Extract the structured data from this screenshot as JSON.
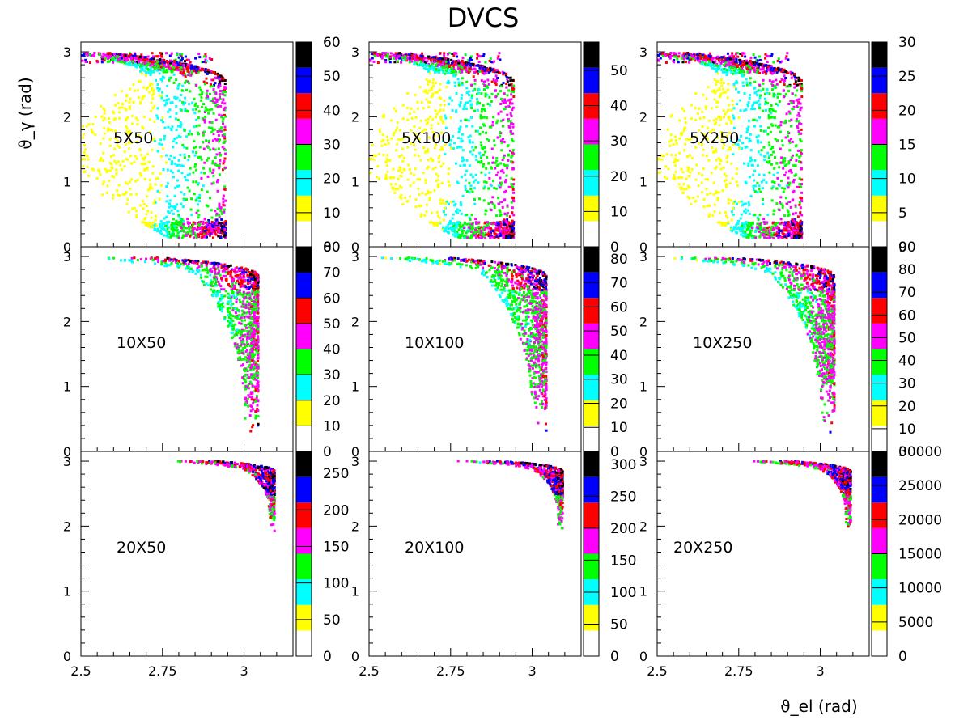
{
  "title": "DVCS",
  "xlabel": "ϑ_el (rad)",
  "ylabel": "ϑ_γ (rad)",
  "colors": {
    "palette": [
      "#ffffff",
      "#ffff00",
      "#00ffff",
      "#00ff00",
      "#ff00ff",
      "#ff0000",
      "#0000ff",
      "#000000"
    ]
  },
  "chart_data": [
    {
      "type": "heatmap",
      "label": "5X50",
      "xlim": [
        2.5,
        3.15
      ],
      "ylim": [
        0,
        3.15
      ],
      "x_ticks": [
        "2.5",
        "2.75",
        "3"
      ],
      "y_ticks": [
        "0",
        "1",
        "2",
        "3"
      ],
      "colorbar_ticks": [
        "0",
        "10",
        "20",
        "30",
        "40",
        "50",
        "60"
      ],
      "z_max": 60,
      "shape": "broad"
    },
    {
      "type": "heatmap",
      "label": "5X100",
      "xlim": [
        2.5,
        3.15
      ],
      "ylim": [
        0,
        3.15
      ],
      "x_ticks": [
        "2.5",
        "2.75",
        "3"
      ],
      "y_ticks": [
        "0",
        "1",
        "2",
        "3"
      ],
      "colorbar_ticks": [
        "0",
        "10",
        "20",
        "30",
        "40",
        "50"
      ],
      "z_max": 58,
      "shape": "broad"
    },
    {
      "type": "heatmap",
      "label": "5X250",
      "xlim": [
        2.5,
        3.15
      ],
      "ylim": [
        0,
        3.15
      ],
      "x_ticks": [
        "2.5",
        "2.75",
        "3"
      ],
      "y_ticks": [
        "0",
        "1",
        "2",
        "3"
      ],
      "colorbar_ticks": [
        "0",
        "5",
        "10",
        "15",
        "20",
        "25",
        "30"
      ],
      "z_max": 30,
      "shape": "broad"
    },
    {
      "type": "heatmap",
      "label": "10X50",
      "xlim": [
        2.5,
        3.15
      ],
      "ylim": [
        0,
        3.15
      ],
      "x_ticks": [
        "2.5",
        "2.75",
        "3"
      ],
      "y_ticks": [
        "0",
        "1",
        "2",
        "3"
      ],
      "colorbar_ticks": [
        "0",
        "10",
        "20",
        "30",
        "40",
        "50",
        "60",
        "70",
        "80"
      ],
      "z_max": 80,
      "shape": "mid"
    },
    {
      "type": "heatmap",
      "label": "10X100",
      "xlim": [
        2.5,
        3.15
      ],
      "ylim": [
        0,
        3.15
      ],
      "x_ticks": [
        "2.5",
        "2.75",
        "3"
      ],
      "y_ticks": [
        "0",
        "1",
        "2",
        "3"
      ],
      "colorbar_ticks": [
        "0",
        "10",
        "20",
        "30",
        "40",
        "50",
        "60",
        "70",
        "80"
      ],
      "z_max": 85,
      "shape": "mid"
    },
    {
      "type": "heatmap",
      "label": "10X250",
      "xlim": [
        2.5,
        3.15
      ],
      "ylim": [
        0,
        3.15
      ],
      "x_ticks": [
        "2.5",
        "2.75",
        "3"
      ],
      "y_ticks": [
        "0",
        "1",
        "2",
        "3"
      ],
      "colorbar_ticks": [
        "0",
        "10",
        "20",
        "30",
        "40",
        "50",
        "60",
        "70",
        "80",
        "90"
      ],
      "z_max": 90,
      "shape": "mid"
    },
    {
      "type": "heatmap",
      "label": "20X50",
      "xlim": [
        2.5,
        3.15
      ],
      "ylim": [
        0,
        3.15
      ],
      "x_ticks": [
        "2.5",
        "2.75",
        "3"
      ],
      "y_ticks": [
        "0",
        "1",
        "2",
        "3"
      ],
      "colorbar_ticks": [
        "0",
        "50",
        "100",
        "150",
        "200",
        "250"
      ],
      "z_max": 280,
      "shape": "narrow"
    },
    {
      "type": "heatmap",
      "label": "20X100",
      "xlim": [
        2.5,
        3.15
      ],
      "ylim": [
        0,
        3.15
      ],
      "x_ticks": [
        "2.5",
        "2.75",
        "3"
      ],
      "y_ticks": [
        "0",
        "1",
        "2",
        "3"
      ],
      "colorbar_ticks": [
        "0",
        "50",
        "100",
        "150",
        "200",
        "250",
        "300"
      ],
      "z_max": 320,
      "shape": "narrow"
    },
    {
      "type": "heatmap",
      "label": "20X250",
      "xlim": [
        2.5,
        3.15
      ],
      "ylim": [
        0,
        3.15
      ],
      "x_ticks": [
        "2.5",
        "2.75",
        "3"
      ],
      "y_ticks": [
        "0",
        "1",
        "2",
        "3"
      ],
      "colorbar_ticks": [
        "0",
        "5000",
        "10000",
        "15000",
        "20000",
        "25000",
        "30000"
      ],
      "z_max": 30000,
      "shape": "narrow"
    }
  ]
}
